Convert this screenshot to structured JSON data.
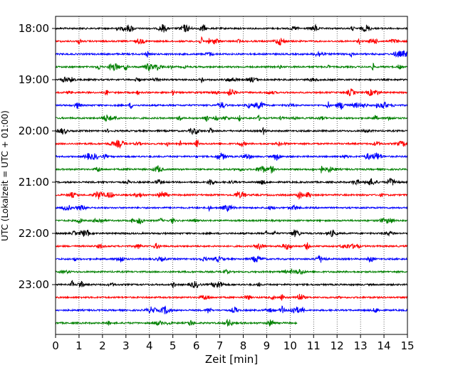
{
  "chart_data": {
    "type": "line",
    "xlabel": "Zeit  [min]",
    "ylabel": "UTC (Lokalzeit = UTC + 01:00)",
    "xlim": [
      0,
      15
    ],
    "x_ticks": [
      "0",
      "1",
      "2",
      "3",
      "4",
      "5",
      "6",
      "7",
      "8",
      "9",
      "10",
      "11",
      "12",
      "13",
      "14",
      "15"
    ],
    "y_ticks": [
      "18:00",
      "19:00",
      "20:00",
      "21:00",
      "22:00",
      "23:00"
    ],
    "grid": "vertical dotted lines at each minute",
    "trace_interval_min": 15,
    "traces": [
      {
        "start": "18:00",
        "color": "#000000",
        "end_min": 15
      },
      {
        "start": "18:15",
        "color": "#ff0000",
        "end_min": 15
      },
      {
        "start": "18:30",
        "color": "#0000ff",
        "end_min": 15
      },
      {
        "start": "18:45",
        "color": "#008000",
        "end_min": 15
      },
      {
        "start": "19:00",
        "color": "#000000",
        "end_min": 15
      },
      {
        "start": "19:15",
        "color": "#ff0000",
        "end_min": 15
      },
      {
        "start": "19:30",
        "color": "#0000ff",
        "end_min": 15
      },
      {
        "start": "19:45",
        "color": "#008000",
        "end_min": 15
      },
      {
        "start": "20:00",
        "color": "#000000",
        "end_min": 15
      },
      {
        "start": "20:15",
        "color": "#ff0000",
        "end_min": 15
      },
      {
        "start": "20:30",
        "color": "#0000ff",
        "end_min": 15
      },
      {
        "start": "20:45",
        "color": "#008000",
        "end_min": 15
      },
      {
        "start": "21:00",
        "color": "#000000",
        "end_min": 15
      },
      {
        "start": "21:15",
        "color": "#ff0000",
        "end_min": 15
      },
      {
        "start": "21:30",
        "color": "#0000ff",
        "end_min": 15
      },
      {
        "start": "21:45",
        "color": "#008000",
        "end_min": 15
      },
      {
        "start": "22:00",
        "color": "#000000",
        "end_min": 15
      },
      {
        "start": "22:15",
        "color": "#ff0000",
        "end_min": 15
      },
      {
        "start": "22:30",
        "color": "#0000ff",
        "end_min": 15
      },
      {
        "start": "22:45",
        "color": "#008000",
        "end_min": 15
      },
      {
        "start": "23:00",
        "color": "#000000",
        "end_min": 15
      },
      {
        "start": "23:15",
        "color": "#ff0000",
        "end_min": 15
      },
      {
        "start": "23:30",
        "color": "#0000ff",
        "end_min": 15
      },
      {
        "start": "23:45",
        "color": "#008000",
        "end_min": 10.3
      }
    ]
  }
}
